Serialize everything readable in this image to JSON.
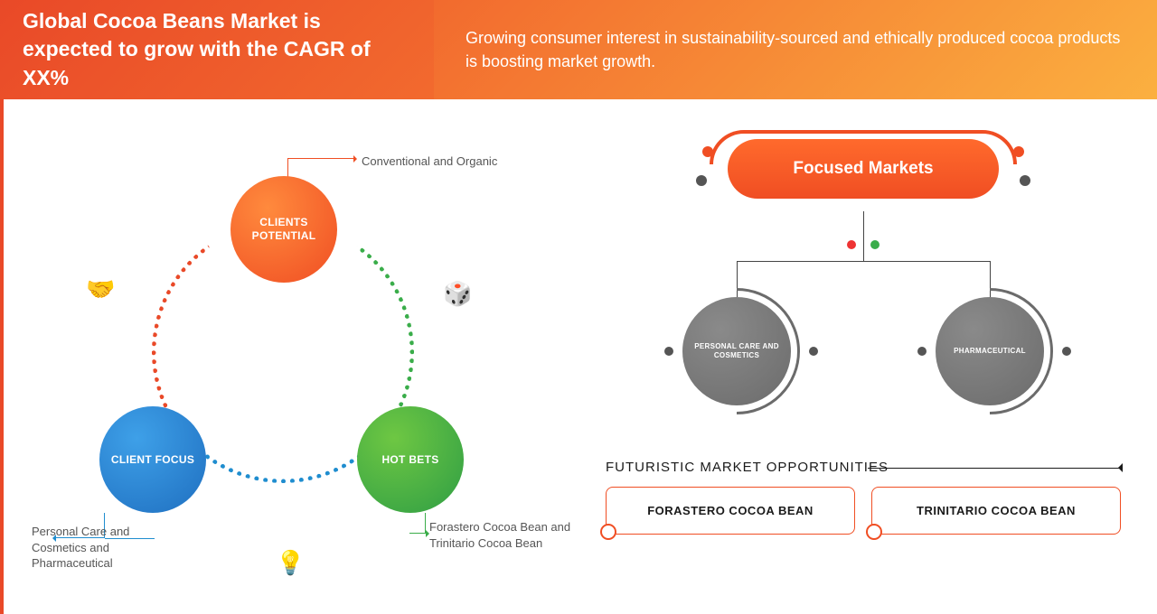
{
  "header": {
    "title": "Global Cocoa Beans Market is expected to grow with the CAGR of XX%",
    "subtitle": "Growing consumer interest in sustainability-sourced and ethically produced cocoa products is boosting market growth."
  },
  "leftDiagram": {
    "nodes": {
      "potential": {
        "label": "CLIENTS POTENTIAL",
        "callout": "Conventional and Organic",
        "color": "#f04e23"
      },
      "focus": {
        "label": "CLIENT FOCUS",
        "callout": "Personal Care and Cosmetics and Pharmaceutical",
        "color": "#1f8dcf"
      },
      "hot": {
        "label": "HOT BETS",
        "callout": "Forastero Cocoa Bean and Trinitario Cocoa Bean",
        "color": "#3aad4a"
      }
    },
    "icons": {
      "handshake": "🤝",
      "dice": "🎲",
      "bulb": "💡"
    }
  },
  "focusedMarkets": {
    "title": "Focused Markets",
    "children": [
      {
        "label": "PERSONAL CARE AND COSMETICS"
      },
      {
        "label": "PHARMACEUTICAL"
      }
    ]
  },
  "futuristic": {
    "heading": "FUTURISTIC MARKET OPPORTUNITIES",
    "items": [
      "FORASTERO COCOA BEAN",
      "TRINITARIO COCOA BEAN"
    ]
  },
  "colors": {
    "orangePrimary": "#f04e23",
    "orangeLight": "#fbb040",
    "blue": "#1f8dcf",
    "green": "#3aad4a",
    "grey": "#6b6b6b"
  }
}
